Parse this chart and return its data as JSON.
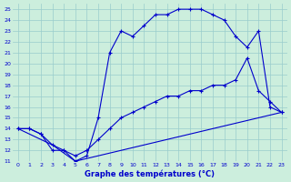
{
  "xlabel": "Graphe des températures (°C)",
  "bg_color": "#cceedd",
  "grid_color": "#99cccc",
  "line_color": "#0000cc",
  "xlim_min": -0.5,
  "xlim_max": 23.5,
  "ylim_min": 11,
  "ylim_max": 25.5,
  "x_ticks": [
    0,
    1,
    2,
    3,
    4,
    5,
    6,
    7,
    8,
    9,
    10,
    11,
    12,
    13,
    14,
    15,
    16,
    17,
    18,
    19,
    20,
    21,
    22,
    23
  ],
  "y_ticks": [
    11,
    12,
    13,
    14,
    15,
    16,
    17,
    18,
    19,
    20,
    21,
    22,
    23,
    24,
    25
  ],
  "line1_x": [
    0,
    1,
    2,
    3,
    4,
    5,
    6,
    7,
    8,
    9,
    10,
    11,
    12,
    13,
    14,
    15,
    16,
    17,
    18,
    19,
    20,
    21,
    22,
    23
  ],
  "line1_y": [
    14,
    14,
    13.5,
    12,
    12,
    11,
    11.5,
    15,
    21,
    23,
    22.5,
    23.5,
    24.5,
    24.5,
    25,
    25,
    25,
    24.5,
    24,
    22.5,
    21.5,
    23,
    16,
    15.5
  ],
  "line2_x": [
    0,
    1,
    2,
    3,
    4,
    5,
    6,
    7,
    8,
    9,
    10,
    11,
    12,
    13,
    14,
    15,
    16,
    17,
    18,
    19,
    20,
    21,
    22,
    23
  ],
  "line2_y": [
    14,
    14,
    13.5,
    12.5,
    12,
    11.5,
    12,
    13,
    14,
    15,
    15.5,
    16,
    16.5,
    17,
    17,
    17.5,
    17.5,
    18,
    18,
    18.5,
    20.5,
    17.5,
    16.5,
    15.5
  ],
  "line3_x": [
    0,
    3,
    5,
    23
  ],
  "line3_y": [
    14,
    12.5,
    11,
    15.5
  ],
  "marker_size": 2.5,
  "line_width": 0.8,
  "tick_fontsize": 4.5,
  "xlabel_fontsize": 6.0,
  "xlabel_bold": true
}
